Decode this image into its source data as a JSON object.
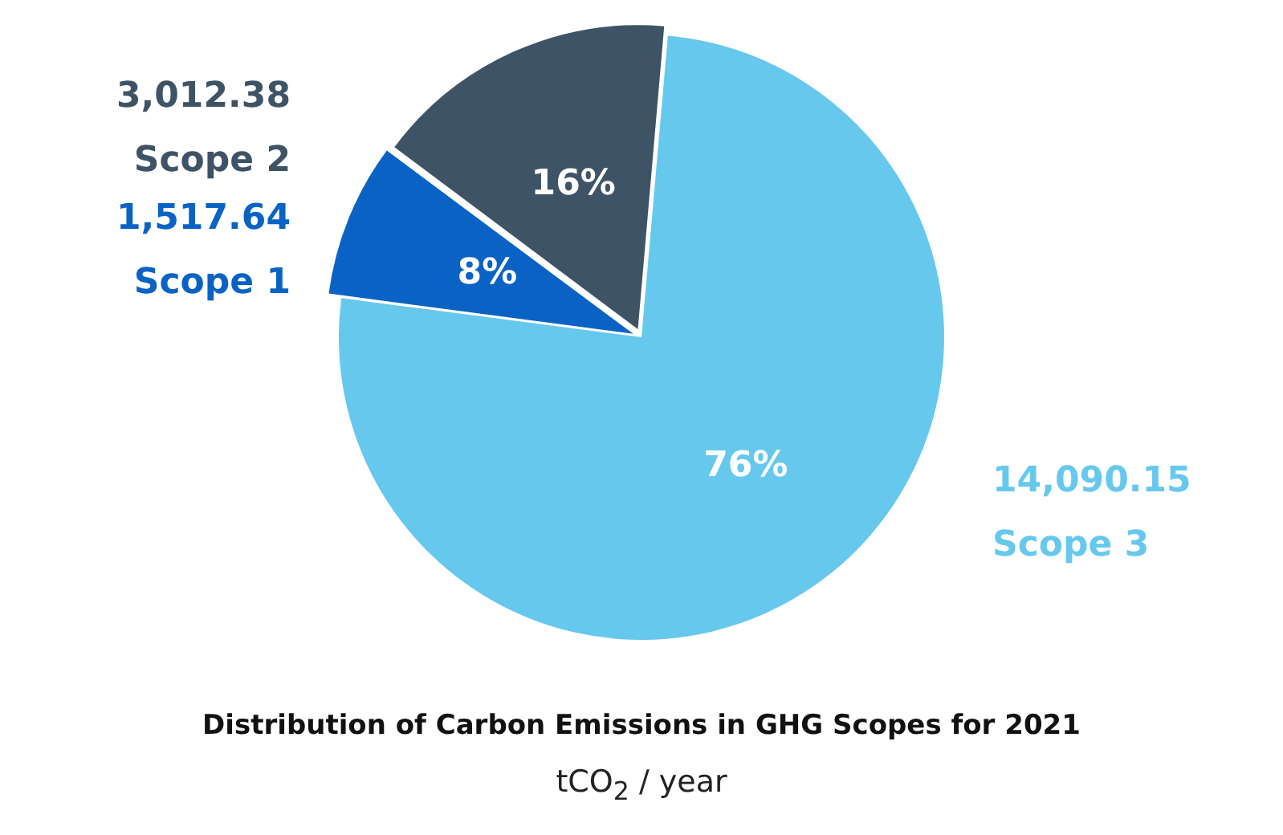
{
  "chart_data": {
    "type": "pie",
    "title": "Distribution of Carbon Emissions in GHG Scopes for 2021",
    "subtitle": "tCO$_{2}$ / year",
    "categories": [
      "Scope 1",
      "Scope 2",
      "Scope 3"
    ],
    "values": [
      1517.64,
      3012.38,
      14090.15
    ],
    "colors": [
      "#0a63c4",
      "#3f5366",
      "#67c8ed"
    ],
    "value_labels": [
      "1,517.64",
      "3,012.38",
      "14,090.15"
    ],
    "annotations": [
      "8%",
      "16%",
      "76%"
    ],
    "legend": false
  }
}
